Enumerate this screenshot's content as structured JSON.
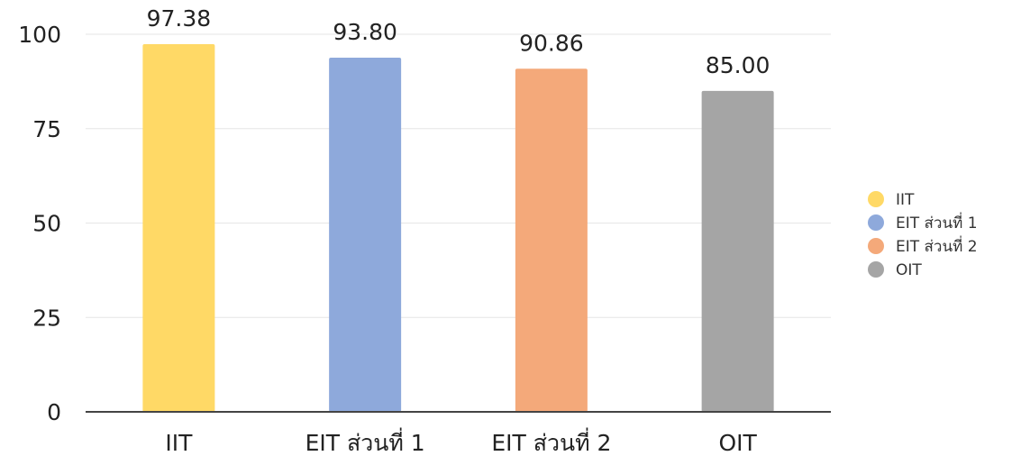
{
  "chart_data": {
    "type": "bar",
    "categories": [
      "IIT",
      "EIT ส่วนที่ 1",
      "EIT ส่วนที่ 2",
      "OIT"
    ],
    "values": [
      97.38,
      93.8,
      90.86,
      85.0
    ],
    "value_labels": [
      "97.38",
      "93.80",
      "90.86",
      "85.00"
    ],
    "colors": [
      "#FFD966",
      "#8EA9DB",
      "#F4A97A",
      "#A5A5A5"
    ],
    "yticks": [
      "0",
      "25",
      "50",
      "75",
      "100"
    ],
    "ylim": [
      0,
      100
    ],
    "grid": true,
    "legend": {
      "position": "right",
      "entries": [
        "IIT",
        "EIT ส่วนที่ 1",
        "EIT ส่วนที่ 2",
        "OIT"
      ]
    },
    "title": "",
    "xlabel": "",
    "ylabel": ""
  }
}
